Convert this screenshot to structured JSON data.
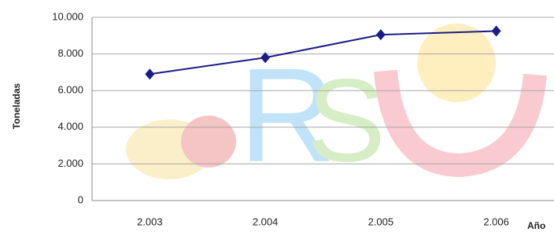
{
  "chart_data": {
    "type": "line",
    "y_axis_label": "Toneladas",
    "x_axis_label": "Año",
    "categories": [
      "2.003",
      "2.004",
      "2.005",
      "2.006"
    ],
    "series": [
      {
        "name": "Toneladas",
        "color": "#1c1c84",
        "values": [
          6900,
          7800,
          9050,
          9250
        ]
      }
    ],
    "ylim": [
      0,
      10000
    ],
    "yticks": [
      0,
      {
        "value": 2000,
        "label": "2.000"
      },
      {
        "value": 4000,
        "label": "4.000"
      },
      {
        "value": 6000,
        "label": "6.000"
      },
      {
        "value": 8000,
        "label": "8.000"
      },
      {
        "value": 10000,
        "label": "10.000"
      }
    ],
    "grid": true
  }
}
